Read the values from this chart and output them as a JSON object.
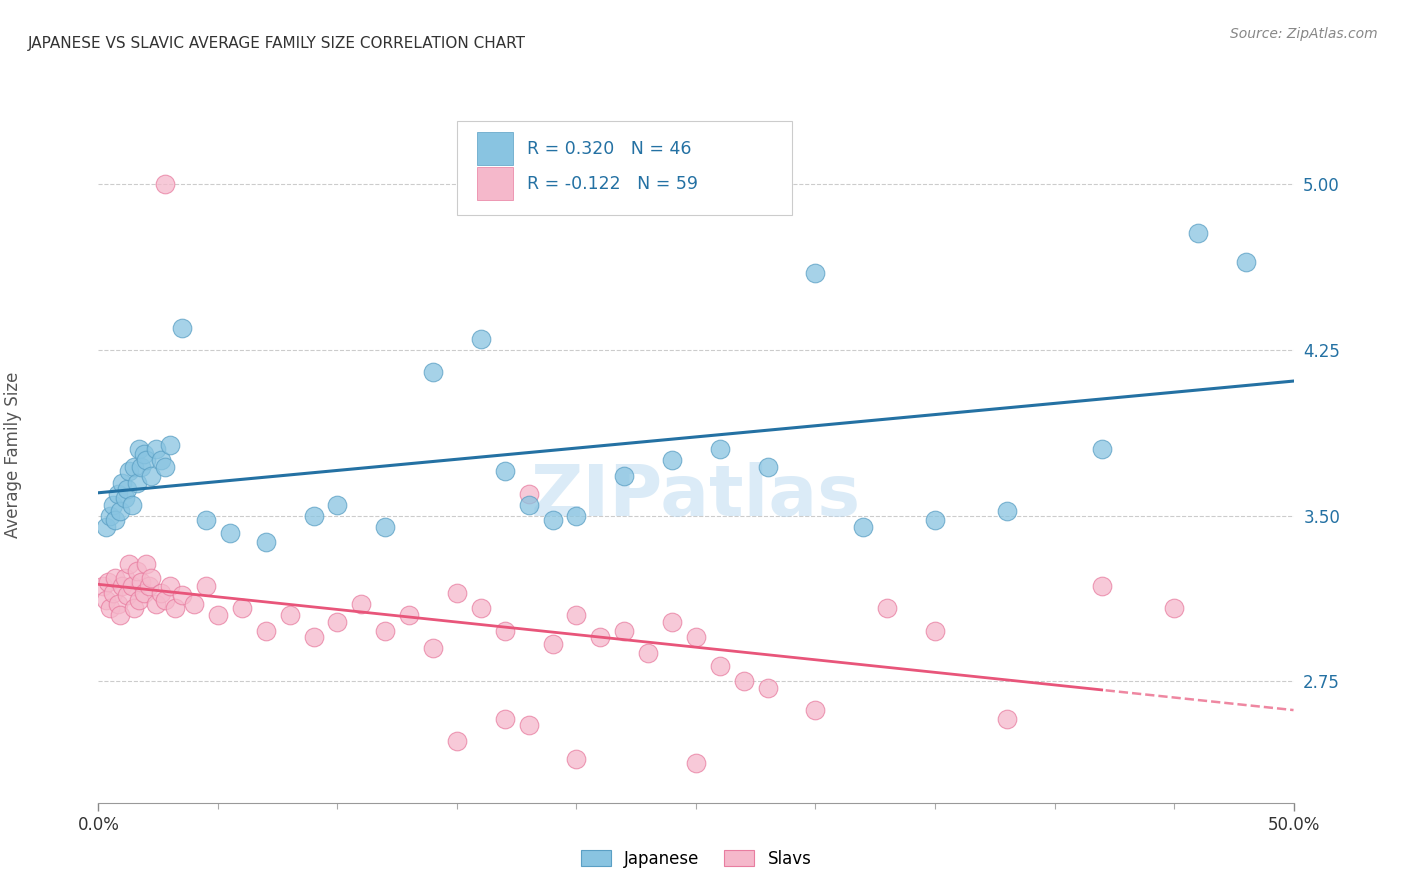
{
  "title": "JAPANESE VS SLAVIC AVERAGE FAMILY SIZE CORRELATION CHART",
  "source": "Source: ZipAtlas.com",
  "ylabel": "Average Family Size",
  "y_ticks": [
    2.75,
    3.5,
    4.25,
    5.0
  ],
  "x_range": [
    0.0,
    50.0
  ],
  "y_range": [
    2.2,
    5.35
  ],
  "japanese_color": "#89c4e1",
  "japanese_edge_color": "#5a9fc4",
  "slavic_color": "#f5b8cb",
  "slavic_edge_color": "#e87da0",
  "japanese_line_color": "#2471a3",
  "slavic_line_color": "#e8557a",
  "tick_label_color": "#2471a3",
  "legend_text_color": "#2471a3",
  "title_color": "#333333",
  "ylabel_color": "#555555",
  "grid_color": "#cccccc",
  "background_color": "#ffffff",
  "watermark": "ZIPatlas",
  "R_japanese": 0.32,
  "N_japanese": 46,
  "R_slavic": -0.122,
  "N_slavic": 59,
  "japanese_x": [
    0.3,
    0.5,
    0.6,
    0.7,
    0.8,
    0.9,
    1.0,
    1.1,
    1.2,
    1.3,
    1.4,
    1.5,
    1.6,
    1.7,
    1.8,
    1.9,
    2.0,
    2.2,
    2.4,
    2.6,
    2.8,
    3.0,
    3.5,
    4.5,
    5.5,
    7.0,
    9.0,
    10.0,
    12.0,
    14.0,
    16.0,
    17.0,
    18.0,
    19.0,
    20.0,
    22.0,
    24.0,
    26.0,
    28.0,
    30.0,
    32.0,
    35.0,
    38.0,
    42.0,
    46.0,
    48.0
  ],
  "japanese_y": [
    3.45,
    3.5,
    3.55,
    3.48,
    3.6,
    3.52,
    3.65,
    3.58,
    3.62,
    3.7,
    3.55,
    3.72,
    3.65,
    3.8,
    3.72,
    3.78,
    3.75,
    3.68,
    3.8,
    3.75,
    3.72,
    3.82,
    4.35,
    3.48,
    3.42,
    3.38,
    3.5,
    3.55,
    3.45,
    4.15,
    4.3,
    3.7,
    3.55,
    3.48,
    3.5,
    3.68,
    3.75,
    3.8,
    3.72,
    4.6,
    3.45,
    3.48,
    3.52,
    3.8,
    4.78,
    4.65
  ],
  "slavic_x": [
    0.2,
    0.3,
    0.4,
    0.5,
    0.6,
    0.7,
    0.8,
    0.9,
    1.0,
    1.1,
    1.2,
    1.3,
    1.4,
    1.5,
    1.6,
    1.7,
    1.8,
    1.9,
    2.0,
    2.1,
    2.2,
    2.4,
    2.6,
    2.8,
    3.0,
    3.2,
    3.5,
    4.0,
    4.5,
    5.0,
    6.0,
    7.0,
    8.0,
    9.0,
    10.0,
    11.0,
    12.0,
    13.0,
    14.0,
    15.0,
    16.0,
    17.0,
    18.0,
    19.0,
    20.0,
    21.0,
    22.0,
    23.0,
    24.0,
    25.0,
    26.0,
    27.0,
    28.0,
    30.0,
    33.0,
    35.0,
    38.0,
    42.0,
    45.0
  ],
  "slavic_y": [
    3.18,
    3.12,
    3.2,
    3.08,
    3.15,
    3.22,
    3.1,
    3.05,
    3.18,
    3.22,
    3.14,
    3.28,
    3.18,
    3.08,
    3.25,
    3.12,
    3.2,
    3.15,
    3.28,
    3.18,
    3.22,
    3.1,
    3.15,
    3.12,
    3.18,
    3.08,
    3.14,
    3.1,
    3.18,
    3.05,
    3.08,
    2.98,
    3.05,
    2.95,
    3.02,
    3.1,
    2.98,
    3.05,
    2.9,
    3.15,
    3.08,
    2.98,
    3.6,
    2.92,
    3.05,
    2.95,
    2.98,
    2.88,
    3.02,
    2.95,
    2.82,
    2.75,
    2.72,
    2.62,
    3.08,
    2.98,
    2.58,
    3.18,
    3.08
  ],
  "slavic_outlier_x": 2.8,
  "slavic_outlier_y": 5.0,
  "slavic_low1_x": 25.0,
  "slavic_low1_y": 2.38,
  "slavic_low2_x": 15.0,
  "slavic_low2_y": 2.48,
  "slavic_low3_x": 17.0,
  "slavic_low3_y": 2.58,
  "slavic_low4_x": 18.0,
  "slavic_low4_y": 2.55,
  "slavic_low5_x": 20.0,
  "slavic_low5_y": 2.4
}
